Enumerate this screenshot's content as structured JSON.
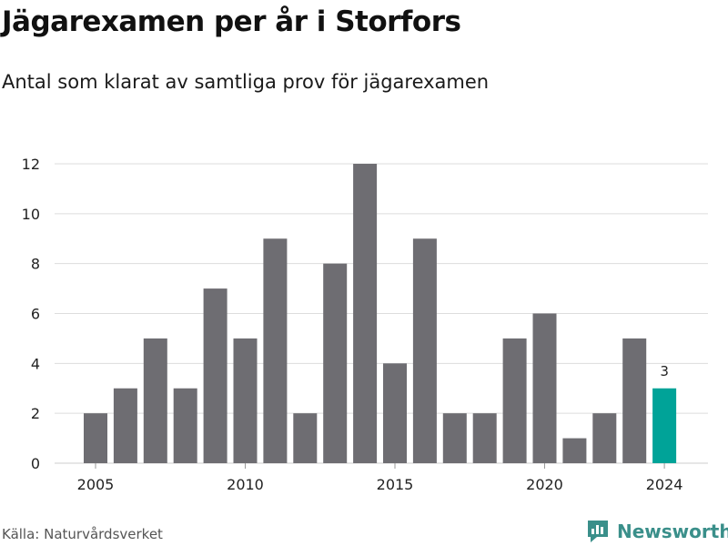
{
  "header": {
    "title": "Jägarexamen per år i Storfors",
    "subtitle": "Antal som klarat av samtliga prov för jägarexamen"
  },
  "footer": {
    "source": "Källa: Naturvårdsverket",
    "brand": "Newsworthy",
    "brand_icon": "newsworthy-logo-icon"
  },
  "colors": {
    "bar": "#6e6d72",
    "highlight": "#00a398",
    "grid": "#dddddd",
    "brand": "#3a8f8a"
  },
  "chart_data": {
    "type": "bar",
    "title": "Jägarexamen per år i Storfors",
    "subtitle": "Antal som klarat av samtliga prov för jägarexamen",
    "xlabel": "",
    "ylabel": "",
    "categories": [
      "2005",
      "2006",
      "2007",
      "2008",
      "2009",
      "2010",
      "2011",
      "2012",
      "2013",
      "2014",
      "2015",
      "2016",
      "2017",
      "2018",
      "2019",
      "2020",
      "2021",
      "2022",
      "2023",
      "2024"
    ],
    "values": [
      2,
      3,
      5,
      3,
      7,
      5,
      9,
      2,
      8,
      12,
      4,
      9,
      2,
      2,
      5,
      6,
      1,
      2,
      5,
      3
    ],
    "ylim": [
      0,
      12
    ],
    "yticks": [
      0,
      2,
      4,
      6,
      8,
      10,
      12
    ],
    "xtick_labels": [
      "2005",
      "2010",
      "2015",
      "2020",
      "2024"
    ],
    "highlight_category": "2024",
    "data_labels": [
      {
        "category": "2024",
        "text": "3"
      }
    ],
    "grid": true,
    "legend": "none"
  }
}
